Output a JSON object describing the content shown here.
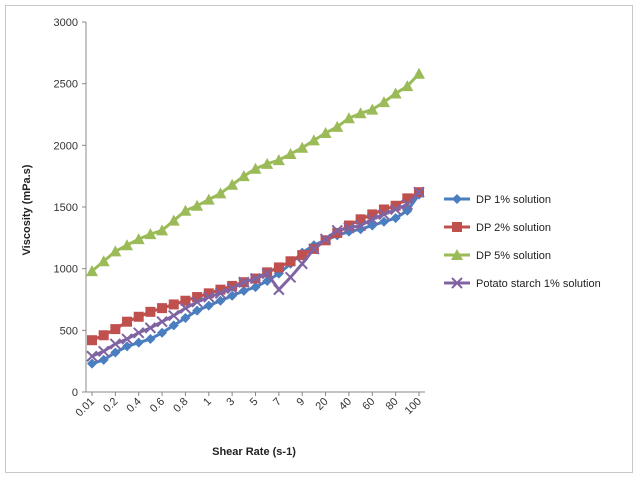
{
  "chart_data": {
    "type": "line",
    "title": "",
    "xlabel": "Shear Rate (s-1)",
    "ylabel": "Viscosity (mPa.s)",
    "ylim": [
      0,
      3000
    ],
    "yticks": [
      0,
      500,
      1000,
      1500,
      2000,
      2500,
      3000
    ],
    "grid": false,
    "legend_position": "right",
    "x": [
      "0.01",
      "0.1",
      "0.2",
      "0.3",
      "0.4",
      "0.5",
      "0.6",
      "0.7",
      "0.8",
      "0.9",
      "1",
      "2",
      "3",
      "4",
      "5",
      "6",
      "7",
      "8",
      "9",
      "10",
      "20",
      "30",
      "40",
      "50",
      "60",
      "70",
      "80",
      "90",
      "100"
    ],
    "x_tick_labels_shown": [
      "0.01",
      "0.2",
      "0.4",
      "0.6",
      "0.8",
      "1",
      "3",
      "5",
      "7",
      "9",
      "20",
      "40",
      "60",
      "80",
      "100"
    ],
    "series": [
      {
        "name": "DP 1% solution",
        "color": "#4a7ebf",
        "marker": "diamond",
        "values": [
          230,
          260,
          320,
          370,
          400,
          430,
          480,
          540,
          600,
          660,
          700,
          740,
          780,
          820,
          850,
          900,
          960,
          1040,
          1130,
          1190,
          1230,
          1270,
          1300,
          1320,
          1350,
          1380,
          1410,
          1470,
          1600
        ]
      },
      {
        "name": "DP 2% solution",
        "color": "#c0504d",
        "marker": "square",
        "values": [
          420,
          460,
          510,
          570,
          610,
          650,
          680,
          710,
          740,
          770,
          800,
          830,
          860,
          890,
          920,
          970,
          1010,
          1060,
          1110,
          1160,
          1230,
          1290,
          1350,
          1400,
          1440,
          1480,
          1510,
          1570,
          1620
        ]
      },
      {
        "name": "DP 5% solution",
        "color": "#9bbb59",
        "marker": "triangle",
        "values": [
          980,
          1060,
          1140,
          1190,
          1240,
          1280,
          1310,
          1390,
          1470,
          1510,
          1560,
          1610,
          1680,
          1750,
          1810,
          1850,
          1880,
          1930,
          1980,
          2040,
          2100,
          2150,
          2220,
          2260,
          2290,
          2350,
          2420,
          2480,
          2580
        ]
      },
      {
        "name": "Potato starch 1% solution",
        "color": "#8064a2",
        "marker": "x",
        "values": [
          290,
          330,
          390,
          430,
          480,
          520,
          570,
          620,
          680,
          730,
          770,
          800,
          840,
          890,
          920,
          960,
          830,
          930,
          1040,
          1160,
          1240,
          1310,
          1330,
          1350,
          1400,
          1440,
          1480,
          1520,
          1620
        ]
      }
    ]
  }
}
